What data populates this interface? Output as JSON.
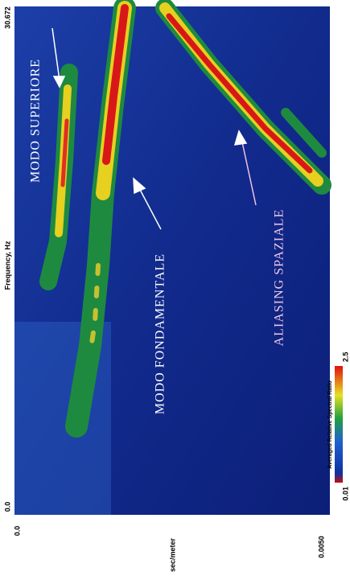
{
  "figure": {
    "frequency_axis": {
      "label": "Frequency, Hz",
      "min": "0.0",
      "max": "30.672"
    },
    "slowness_axis": {
      "label": "sec/meter",
      "min": "0.0",
      "max": "0.0050"
    },
    "colorbar": {
      "title": "Averaged Relative Spectral Ratio",
      "min": "0.01",
      "max": "2.5"
    },
    "annotations": [
      "MODO SUPERIORE",
      "MODO FONDAMENTALE",
      "ALIASING SPAZIALE"
    ]
  }
}
